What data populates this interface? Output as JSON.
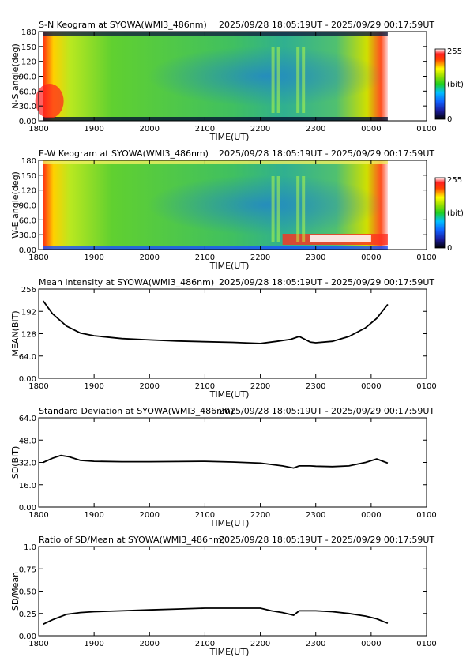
{
  "title_range": "2025/09/28 18:05:19UT - 2025/09/29 00:17:59UT",
  "time_label": "TIME(UT)",
  "chart_data": [
    {
      "type": "heatmap",
      "title": "S-N Keogram at SYOWA(WMI3_486nm)",
      "xlabel": "TIME(UT)",
      "ylabel": "N-S angle(deg)",
      "x_ticks": [
        "1800",
        "1900",
        "2000",
        "2100",
        "2200",
        "2300",
        "0000",
        "0100"
      ],
      "y_ticks": [
        "0.00",
        "30.0",
        "60.0",
        "90.0",
        "120",
        "150",
        "180"
      ],
      "ylim": [
        0,
        180
      ],
      "colorbar": {
        "ticks": [
          "255",
          "(bit)",
          "0"
        ],
        "range": [
          0,
          255
        ]
      }
    },
    {
      "type": "heatmap",
      "title": "E-W Keogram at SYOWA(WMI3_486nm)",
      "xlabel": "TIME(UT)",
      "ylabel": "W-E angle(deg)",
      "x_ticks": [
        "1800",
        "1900",
        "2000",
        "2100",
        "2200",
        "2300",
        "0000",
        "0100"
      ],
      "y_ticks": [
        "0.00",
        "30.0",
        "60.0",
        "90.0",
        "120",
        "150",
        "180"
      ],
      "ylim": [
        0,
        180
      ],
      "colorbar": {
        "ticks": [
          "255",
          "(bit)",
          "0"
        ],
        "range": [
          0,
          255
        ]
      }
    },
    {
      "type": "line",
      "title": "Mean intensity at SYOWA(WMI3_486nm)",
      "xlabel": "TIME(UT)",
      "ylabel": "MEAN(BIT)",
      "x_ticks": [
        "1800",
        "1900",
        "2000",
        "2100",
        "2200",
        "2300",
        "0000",
        "0100"
      ],
      "y_ticks": [
        "0.00",
        "64.0",
        "128",
        "192",
        "256"
      ],
      "ylim": [
        0,
        256
      ],
      "x": [
        18.08,
        18.25,
        18.5,
        18.75,
        19.0,
        19.5,
        20.0,
        20.5,
        21.0,
        21.5,
        22.0,
        22.3,
        22.55,
        22.7,
        22.9,
        23.0,
        23.3,
        23.6,
        23.9,
        24.1,
        24.3
      ],
      "values": [
        222,
        185,
        150,
        130,
        122,
        114,
        110,
        107,
        105,
        103,
        100,
        106,
        112,
        120,
        104,
        102,
        106,
        120,
        145,
        172,
        212
      ]
    },
    {
      "type": "line",
      "title": "Standard Deviation at SYOWA(WMI3_486nm)",
      "xlabel": "TIME(UT)",
      "ylabel": "SD(BIT)",
      "x_ticks": [
        "1800",
        "1900",
        "2000",
        "2100",
        "2200",
        "2300",
        "0000",
        "0100"
      ],
      "y_ticks": [
        "0.00",
        "16.0",
        "32.0",
        "48.0",
        "64.0"
      ],
      "ylim": [
        0,
        64
      ],
      "x": [
        18.08,
        18.25,
        18.4,
        18.55,
        18.75,
        19.0,
        19.5,
        20.0,
        20.5,
        21.0,
        21.5,
        22.0,
        22.2,
        22.4,
        22.6,
        22.7,
        22.9,
        23.0,
        23.3,
        23.6,
        23.9,
        24.1,
        24.3
      ],
      "values": [
        32,
        35,
        37,
        36,
        33.5,
        32.8,
        32.5,
        32.5,
        32.6,
        32.8,
        32.3,
        31.5,
        30.5,
        29.5,
        28,
        29.5,
        29.5,
        29.3,
        29,
        29.5,
        32,
        34.5,
        31.5
      ]
    },
    {
      "type": "line",
      "title": "Ratio of SD/Mean at SYOWA(WMI3_486nm)",
      "xlabel": "TIME(UT)",
      "ylabel": "SD/Mean",
      "x_ticks": [
        "1800",
        "1900",
        "2000",
        "2100",
        "2200",
        "2300",
        "0000",
        "0100"
      ],
      "y_ticks": [
        "0.00",
        "0.25",
        "0.50",
        "0.75",
        "1.0"
      ],
      "ylim": [
        0,
        1
      ],
      "x": [
        18.08,
        18.25,
        18.5,
        18.75,
        19.0,
        19.5,
        20.0,
        20.5,
        21.0,
        21.5,
        22.0,
        22.2,
        22.4,
        22.6,
        22.7,
        22.9,
        23.0,
        23.3,
        23.6,
        23.9,
        24.1,
        24.3
      ],
      "values": [
        0.13,
        0.18,
        0.24,
        0.26,
        0.27,
        0.28,
        0.29,
        0.3,
        0.31,
        0.31,
        0.31,
        0.28,
        0.26,
        0.23,
        0.28,
        0.28,
        0.28,
        0.27,
        0.25,
        0.22,
        0.19,
        0.14
      ]
    }
  ]
}
